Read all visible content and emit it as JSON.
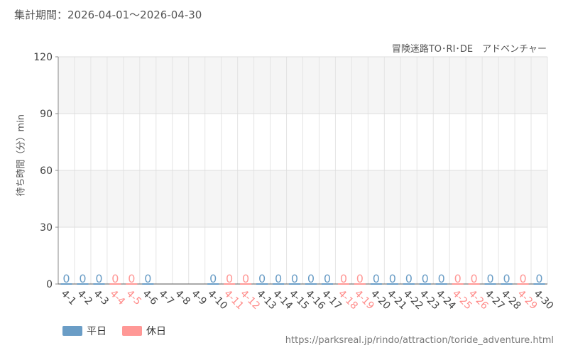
{
  "header": {
    "period": "集計期間：2026-04-01～2026-04-30",
    "attraction": "冒険迷路TO･RI･DE　アドベンチャー"
  },
  "footer": {
    "url": "https://parksreal.jp/rindo/attraction/toride_adventure.html"
  },
  "colors": {
    "weekday": "#6a9dc6",
    "holiday": "#ff9896"
  },
  "chart_data": {
    "type": "bar",
    "ylabel": "待ち時間（分）min",
    "ylim": [
      0,
      120
    ],
    "yticks": [
      0,
      30,
      60,
      90,
      120
    ],
    "grid": true,
    "legend_position": "bottom-left",
    "legend": [
      {
        "name": "平日",
        "color": "#6a9dc6"
      },
      {
        "name": "休日",
        "color": "#ff9896"
      }
    ],
    "categories": [
      "4-1",
      "4-2",
      "4-3",
      "4-4",
      "4-5",
      "4-6",
      "4-7",
      "4-8",
      "4-9",
      "4-10",
      "4-11",
      "4-12",
      "4-13",
      "4-14",
      "4-15",
      "4-16",
      "4-17",
      "4-18",
      "4-19",
      "4-20",
      "4-21",
      "4-22",
      "4-23",
      "4-24",
      "4-25",
      "4-26",
      "4-27",
      "4-28",
      "4-29",
      "4-30"
    ],
    "day_type": [
      "weekday",
      "weekday",
      "weekday",
      "holiday",
      "holiday",
      "weekday",
      "weekday",
      "weekday",
      "weekday",
      "weekday",
      "holiday",
      "holiday",
      "weekday",
      "weekday",
      "weekday",
      "weekday",
      "weekday",
      "holiday",
      "holiday",
      "weekday",
      "weekday",
      "weekday",
      "weekday",
      "weekday",
      "holiday",
      "holiday",
      "weekday",
      "weekday",
      "holiday",
      "weekday"
    ],
    "values": [
      0,
      0,
      0,
      0,
      0,
      0,
      null,
      null,
      null,
      0,
      0,
      0,
      0,
      0,
      0,
      0,
      0,
      0,
      0,
      0,
      0,
      0,
      0,
      0,
      0,
      0,
      0,
      0,
      0,
      0
    ],
    "data_labels": [
      "0",
      "0",
      "0",
      "0",
      "0",
      "0",
      "",
      "",
      "",
      "0",
      "0",
      "0",
      "0",
      "0",
      "0",
      "0",
      "0",
      "0",
      "0",
      "0",
      "0",
      "0",
      "0",
      "0",
      "0",
      "0",
      "0",
      "0",
      "0",
      "0"
    ]
  }
}
